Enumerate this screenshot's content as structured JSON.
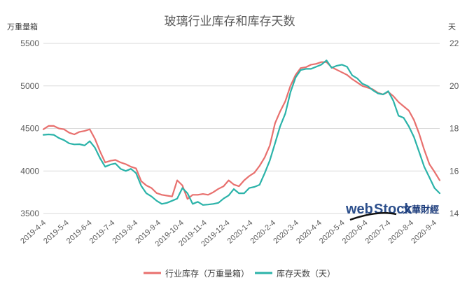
{
  "chart_data": {
    "type": "line",
    "title": "玻璃行业库存和库存天数",
    "ylabel_left": "万重量箱",
    "ylabel_right": "天",
    "ylim_left": [
      3500,
      5500
    ],
    "ylim_right": [
      14,
      22
    ],
    "yticks_left": [
      "3500",
      "4000",
      "4500",
      "5000",
      "5500"
    ],
    "yticks_right": [
      "14",
      "16",
      "18",
      "20",
      "22"
    ],
    "grid": true,
    "legend_position": "bottom",
    "x_tick_labels": [
      "2019-4-4",
      "2019-5-4",
      "2019-6-4",
      "2019-7-4",
      "2019-8-4",
      "2019-9-4",
      "2019-10-4",
      "2019-11-4",
      "2019-12-4",
      "2020-1-4",
      "2020-2-4",
      "2020-3-4",
      "2020-4-4",
      "2020-5-4",
      "2020-6-4",
      "2020-7-4",
      "2020-8-4",
      "2020-9-4"
    ],
    "series": [
      {
        "name": "行业库存（万重量箱）",
        "axis": "left",
        "color": "#e8706e",
        "values": [
          4490,
          4530,
          4530,
          4500,
          4490,
          4450,
          4430,
          4460,
          4470,
          4490,
          4380,
          4230,
          4100,
          4120,
          4130,
          4100,
          4080,
          4050,
          4030,
          3880,
          3830,
          3800,
          3740,
          3720,
          3710,
          3700,
          3890,
          3830,
          3670,
          3720,
          3720,
          3730,
          3720,
          3750,
          3790,
          3820,
          3890,
          3840,
          3820,
          3890,
          3940,
          3980,
          4060,
          4160,
          4300,
          4560,
          4700,
          4820,
          5000,
          5130,
          5210,
          5220,
          5250,
          5260,
          5280,
          5280,
          5220,
          5190,
          5160,
          5130,
          5080,
          5040,
          5000,
          4980,
          4960,
          4920,
          4900,
          4930,
          4880,
          4810,
          4760,
          4710,
          4600,
          4440,
          4250,
          4080,
          3990,
          3890
        ]
      },
      {
        "name": "库存天数（天）",
        "axis": "right",
        "color": "#2bb3a9",
        "values": [
          17.7,
          17.72,
          17.7,
          17.55,
          17.45,
          17.3,
          17.25,
          17.26,
          17.2,
          17.4,
          17.1,
          16.6,
          16.2,
          16.3,
          16.35,
          16.1,
          16.0,
          16.1,
          15.9,
          15.3,
          14.95,
          14.8,
          14.6,
          14.45,
          14.5,
          14.6,
          14.7,
          15.2,
          14.95,
          14.45,
          14.55,
          14.4,
          14.42,
          14.45,
          14.5,
          14.7,
          14.85,
          15.15,
          14.95,
          14.95,
          15.2,
          15.25,
          15.35,
          15.9,
          16.5,
          17.3,
          18.1,
          18.7,
          19.7,
          20.4,
          20.75,
          20.8,
          20.8,
          20.9,
          21.0,
          21.2,
          20.85,
          20.95,
          21.0,
          20.9,
          20.5,
          20.35,
          20.1,
          20.0,
          19.8,
          19.65,
          19.6,
          19.75,
          19.3,
          18.6,
          18.5,
          18.1,
          17.6,
          16.9,
          16.2,
          15.7,
          15.2,
          14.95
        ]
      }
    ]
  },
  "watermark": {
    "brand_web": "web",
    "brand_stock": "Stock",
    "brand_cn": "文華財經"
  }
}
